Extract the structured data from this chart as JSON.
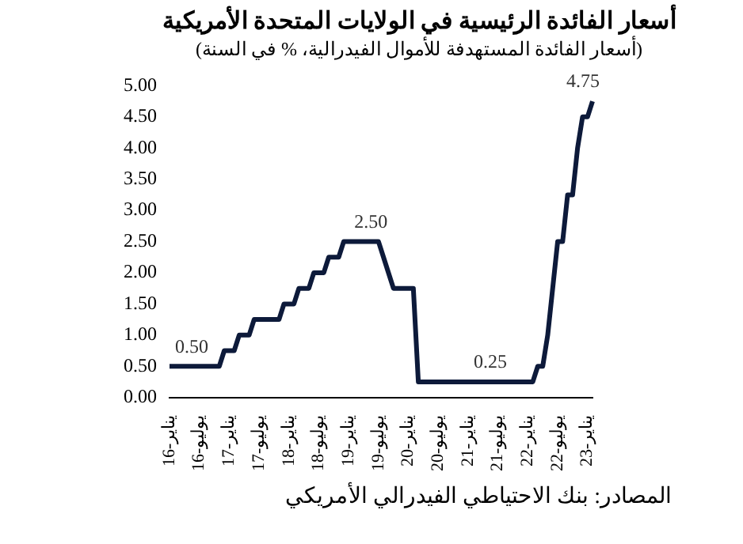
{
  "chart_data": {
    "type": "line",
    "title": "أسعار الفائدة الرئيسية في الولايات المتحدة الأمريكية",
    "subtitle": "(أسعار الفائدة المستهدفة للأموال الفيدرالية، % في السنة)",
    "categories": [
      "يناير-16",
      null,
      null,
      null,
      null,
      null,
      "يوليو-16",
      null,
      null,
      null,
      null,
      null,
      "يناير-17",
      null,
      null,
      null,
      null,
      null,
      "يوليو-17",
      null,
      null,
      null,
      null,
      null,
      "يناير-18",
      null,
      null,
      null,
      null,
      null,
      "يوليو-18",
      null,
      null,
      null,
      null,
      null,
      "يناير-19",
      null,
      null,
      null,
      null,
      null,
      "يوليو-19",
      null,
      null,
      null,
      null,
      null,
      "يناير-20",
      null,
      null,
      null,
      null,
      null,
      "يوليو-20",
      null,
      null,
      null,
      null,
      null,
      "يناير-21",
      null,
      null,
      null,
      null,
      null,
      "يوليو-21",
      null,
      null,
      null,
      null,
      null,
      "يناير-22",
      null,
      null,
      null,
      null,
      null,
      "يوليو-22",
      null,
      null,
      null,
      null,
      null,
      "يناير-23",
      null
    ],
    "series": [
      {
        "color": "#0d1a3a",
        "values": [
          0.5,
          0.5,
          0.5,
          0.5,
          0.5,
          0.5,
          0.5,
          0.5,
          0.5,
          0.5,
          0.5,
          0.75,
          0.75,
          0.75,
          1.0,
          1.0,
          1.0,
          1.25,
          1.25,
          1.25,
          1.25,
          1.25,
          1.25,
          1.5,
          1.5,
          1.5,
          1.75,
          1.75,
          1.75,
          2.0,
          2.0,
          2.0,
          2.25,
          2.25,
          2.25,
          2.5,
          2.5,
          2.5,
          2.5,
          2.5,
          2.5,
          2.5,
          2.5,
          2.25,
          2.0,
          1.75,
          1.75,
          1.75,
          1.75,
          1.75,
          0.25,
          0.25,
          0.25,
          0.25,
          0.25,
          0.25,
          0.25,
          0.25,
          0.25,
          0.25,
          0.25,
          0.25,
          0.25,
          0.25,
          0.25,
          0.25,
          0.25,
          0.25,
          0.25,
          0.25,
          0.25,
          0.25,
          0.25,
          0.25,
          0.5,
          0.5,
          1.0,
          1.75,
          2.5,
          2.5,
          3.25,
          3.25,
          4.0,
          4.5,
          4.5,
          4.75
        ]
      }
    ],
    "ylim": [
      0,
      5
    ],
    "yticks": [
      {
        "value": 0,
        "label": "0.00"
      },
      {
        "value": 0.5,
        "label": "0.50"
      },
      {
        "value": 1,
        "label": "1.00"
      },
      {
        "value": 1.5,
        "label": "1.50"
      },
      {
        "value": 2,
        "label": "2.00"
      },
      {
        "value": 2.5,
        "label": "2.50"
      },
      {
        "value": 3,
        "label": "3.00"
      },
      {
        "value": 3.5,
        "label": "3.50"
      },
      {
        "value": 4,
        "label": "4.00"
      },
      {
        "value": 4.5,
        "label": "4.50"
      },
      {
        "value": 5,
        "label": "5.00"
      }
    ],
    "grid": false,
    "marker": "none",
    "line_style": "solid",
    "annotations": [
      {
        "text": "0.50",
        "x": "يناير-16",
        "y": 0.5
      },
      {
        "text": "2.50",
        "x": "يناير-19",
        "y": 2.5
      },
      {
        "text": "0.25",
        "x": "يناير-21",
        "y": 0.25
      },
      {
        "text": "4.75",
        "y": 4.75
      },
      "المصادر: بنك الاحتياطي الفيدرالي الأمريكي"
    ]
  }
}
